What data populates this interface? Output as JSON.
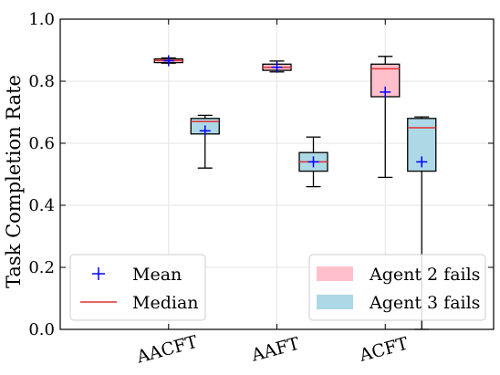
{
  "chart_data": {
    "type": "box",
    "ylabel": "Task Completion Rate",
    "ylim": [
      0.0,
      1.0
    ],
    "yticks": [
      "0.0",
      "0.2",
      "0.4",
      "0.6",
      "0.8",
      "1.0"
    ],
    "grid": true,
    "categories": [
      "AACFT",
      "AAFT",
      "ACFT"
    ],
    "series": [
      {
        "name": "Agent 2 fails",
        "color": "#ffc0cb",
        "boxes": [
          {
            "whisker_low": 0.858,
            "q1": 0.86,
            "median": 0.867,
            "q3": 0.872,
            "whisker_high": 0.875,
            "mean": 0.866
          },
          {
            "whisker_low": 0.83,
            "q1": 0.835,
            "median": 0.845,
            "q3": 0.855,
            "whisker_high": 0.865,
            "mean": 0.845
          },
          {
            "whisker_low": 0.49,
            "q1": 0.75,
            "median": 0.84,
            "q3": 0.855,
            "whisker_high": 0.88,
            "mean": 0.765
          }
        ]
      },
      {
        "name": "Agent 3 fails",
        "color": "#add8e6",
        "boxes": [
          {
            "whisker_low": 0.52,
            "q1": 0.63,
            "median": 0.67,
            "q3": 0.68,
            "whisker_high": 0.69,
            "mean": 0.64
          },
          {
            "whisker_low": 0.46,
            "q1": 0.51,
            "median": 0.54,
            "q3": 0.57,
            "whisker_high": 0.62,
            "mean": 0.54
          },
          {
            "whisker_low": 0.0,
            "q1": 0.51,
            "median": 0.65,
            "q3": 0.68,
            "whisker_high": 0.685,
            "mean": 0.54
          }
        ]
      }
    ],
    "legend_left": {
      "placement": "lower-left",
      "items": [
        {
          "label": "Mean",
          "marker": "plus",
          "color": "#0000ff"
        },
        {
          "label": "Median",
          "marker": "line",
          "color": "#e03030"
        }
      ]
    },
    "legend_right": {
      "placement": "lower-right",
      "items": [
        {
          "label": "Agent 2 fails",
          "color": "#ffc0cb"
        },
        {
          "label": "Agent 3 fails",
          "color": "#add8e6"
        }
      ]
    },
    "mean_color": "#0000ff",
    "median_color": "#e03030"
  }
}
